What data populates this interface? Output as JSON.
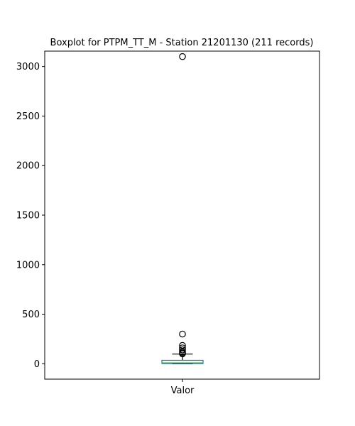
{
  "chart_data": {
    "type": "boxplot",
    "title": "Boxplot for PTPM_TT_M - Station 21201130 (211 records)",
    "categories": [
      "Valor"
    ],
    "ylim": [
      -155,
      3155
    ],
    "yticks": [
      0,
      500,
      1000,
      1500,
      2000,
      2500,
      3000
    ],
    "grid": false,
    "series": [
      {
        "q1": 2,
        "median": 8,
        "q3": 35,
        "whisker_low": 0,
        "whisker_high": 98,
        "outliers": [
          3100,
          300,
          185,
          160,
          140,
          120,
          110,
          100
        ]
      }
    ]
  }
}
